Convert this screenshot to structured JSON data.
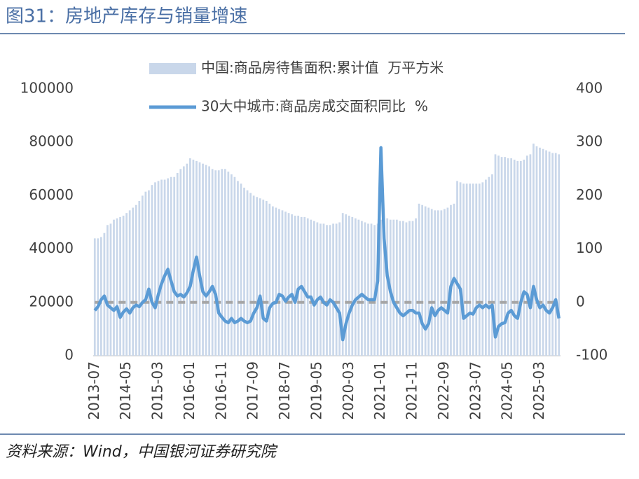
{
  "chart_data": {
    "type": "bar-line",
    "title": "图31：房地产库存与销量增速",
    "source": "资料来源：Wind，中国银河证券研究院",
    "categories": [
      "2013-07",
      null,
      null,
      null,
      null,
      null,
      null,
      null,
      null,
      null,
      "2014-05",
      null,
      null,
      null,
      null,
      null,
      null,
      null,
      null,
      null,
      "2015-03",
      null,
      null,
      null,
      null,
      null,
      null,
      null,
      null,
      null,
      "2016-01",
      null,
      null,
      null,
      null,
      null,
      null,
      null,
      null,
      null,
      "2016-11",
      null,
      null,
      null,
      null,
      null,
      null,
      null,
      null,
      null,
      "2017-09",
      null,
      null,
      null,
      null,
      null,
      null,
      null,
      null,
      null,
      "2018-07",
      null,
      null,
      null,
      null,
      null,
      null,
      null,
      null,
      null,
      "2019-05",
      null,
      null,
      null,
      null,
      null,
      null,
      null,
      null,
      null,
      "2020-03",
      null,
      null,
      null,
      null,
      null,
      null,
      null,
      null,
      null,
      "2021-01",
      null,
      null,
      null,
      null,
      null,
      null,
      null,
      null,
      null,
      "2021-11",
      null,
      null,
      null,
      null,
      null,
      null,
      null,
      null,
      null,
      "2022-09",
      null,
      null,
      null,
      null,
      null,
      null,
      null,
      null,
      null,
      "2023-07",
      null,
      null,
      null,
      null,
      null,
      null,
      null,
      null,
      null,
      "2024-05",
      null,
      null,
      null,
      null,
      null,
      null,
      null,
      null,
      null,
      "2025-03",
      null,
      null,
      null,
      null,
      null,
      null
    ],
    "series": [
      {
        "name": "中国:商品房待售面积:累计值  万平方米",
        "type": "bar",
        "color": "#c9d7ea",
        "axis": "y",
        "values": [
          44000,
          44000,
          44500,
          46000,
          49000,
          49500,
          51000,
          51500,
          52000,
          52500,
          53500,
          54500,
          55500,
          56500,
          58000,
          60000,
          61500,
          62000,
          64000,
          65000,
          65500,
          66000,
          66000,
          66500,
          67000,
          67000,
          68500,
          70000,
          71000,
          72000,
          74000,
          73500,
          73000,
          72500,
          72000,
          71500,
          71000,
          70000,
          69500,
          69500,
          70000,
          70000,
          69000,
          68000,
          67000,
          65500,
          64500,
          63000,
          62000,
          61000,
          60000,
          59500,
          59000,
          58500,
          58000,
          57000,
          56000,
          55500,
          55000,
          54500,
          54000,
          53500,
          53000,
          52500,
          52500,
          52000,
          52000,
          51500,
          51000,
          50500,
          50000,
          49500,
          49500,
          49000,
          49000,
          49500,
          49500,
          50000,
          53500,
          53000,
          52500,
          52000,
          51500,
          51000,
          50500,
          50000,
          49500,
          49500,
          49000,
          49500,
          51000,
          51500,
          51500,
          51000,
          51000,
          51000,
          50500,
          50500,
          50000,
          50500,
          50500,
          51500,
          57000,
          56500,
          56000,
          55500,
          55000,
          54500,
          54500,
          54500,
          55000,
          55500,
          56500,
          57000,
          65500,
          65000,
          64500,
          64500,
          64500,
          64500,
          64500,
          64500,
          65000,
          66000,
          67000,
          68000,
          75500,
          75000,
          74500,
          74500,
          74000,
          74000,
          73500,
          73000,
          73000,
          73500,
          75000,
          75500,
          79500,
          78500,
          78000,
          77500,
          77000,
          76500,
          76000,
          76000,
          75500
        ]
      },
      {
        "name": "30大中城市:商品房成交面积同比  %",
        "type": "line",
        "color": "#5b9bd5",
        "axis": "y2",
        "values": [
          -15,
          -8,
          5,
          12,
          -5,
          -10,
          -15,
          -8,
          -28,
          -18,
          -12,
          -20,
          -10,
          -5,
          -8,
          0,
          5,
          25,
          0,
          -10,
          15,
          35,
          50,
          62,
          40,
          20,
          12,
          15,
          10,
          18,
          30,
          60,
          85,
          50,
          20,
          12,
          20,
          30,
          15,
          -20,
          -28,
          -35,
          -38,
          -30,
          -38,
          -35,
          -30,
          -35,
          -38,
          -35,
          -20,
          -10,
          12,
          -30,
          -35,
          -10,
          -2,
          0,
          15,
          12,
          2,
          10,
          15,
          0,
          25,
          30,
          20,
          10,
          10,
          -5,
          5,
          10,
          0,
          -5,
          5,
          0,
          -10,
          -20,
          -70,
          -40,
          -20,
          -5,
          5,
          10,
          15,
          10,
          5,
          5,
          5,
          40,
          290,
          120,
          50,
          20,
          0,
          -10,
          -20,
          -25,
          -20,
          -15,
          -15,
          -20,
          -20,
          -40,
          -50,
          -40,
          -10,
          -25,
          -15,
          -10,
          -15,
          -20,
          30,
          45,
          35,
          25,
          -30,
          -25,
          -20,
          -22,
          -10,
          -5,
          -10,
          -5,
          -10,
          -5,
          -65,
          -45,
          -40,
          -38,
          -20,
          -15,
          -25,
          -30,
          0,
          20,
          15,
          -10,
          30,
          5,
          -10,
          -5,
          -15,
          -20,
          -10,
          5,
          -30
        ]
      }
    ],
    "ylim": [
      0,
      100000
    ],
    "yticks": [
      0,
      20000,
      40000,
      60000,
      80000,
      100000
    ],
    "y2lim": [
      -100,
      400
    ],
    "y2ticks": [
      -100,
      0,
      100,
      200,
      300,
      400
    ],
    "reference_line": {
      "axis": "y2",
      "value": 0,
      "color": "#a6a6a6"
    }
  }
}
